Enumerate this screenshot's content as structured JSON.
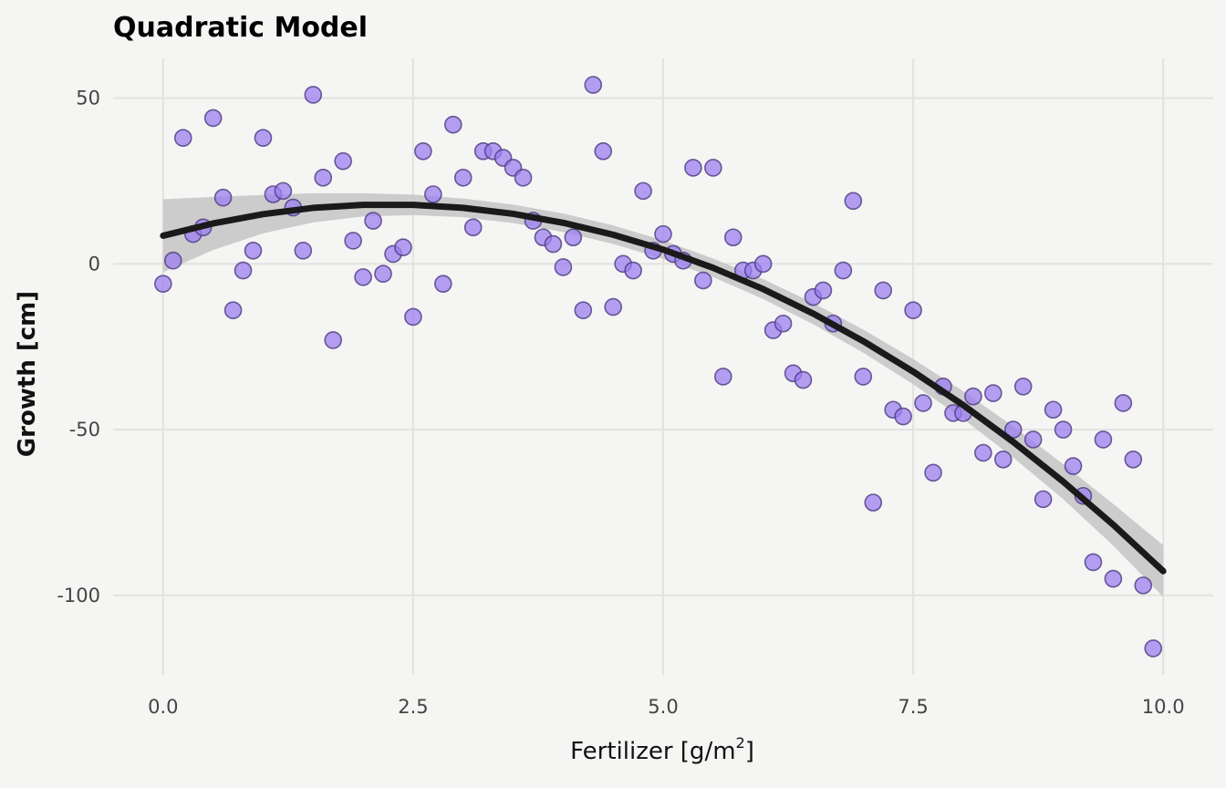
{
  "chart_data": {
    "type": "scatter",
    "title": "Quadratic Model",
    "xlabel": "Fertilizer [g/m",
    "xlabel_sup": "2",
    "xlabel_suffix": "]",
    "ylabel": "Growth [cm]",
    "xlim": [
      -0.5,
      10.5
    ],
    "ylim": [
      -124,
      62
    ],
    "xticks": [
      0.0,
      2.5,
      5.0,
      7.5,
      10.0
    ],
    "xtick_labels": [
      "0.0",
      "2.5",
      "5.0",
      "7.5",
      "10.0"
    ],
    "yticks": [
      50,
      0,
      -50,
      -100
    ],
    "ytick_labels": [
      "50",
      "0",
      "-50",
      "-100"
    ],
    "grid": true,
    "colors": {
      "points_fill": "#9b7ff0",
      "points_stroke": "#4b3a80",
      "fit_line": "#1a1a1a",
      "ribbon": "#c4c4c4",
      "background": "#f5f5f3"
    },
    "points": [
      [
        0.0,
        -6
      ],
      [
        0.1,
        1
      ],
      [
        0.2,
        38
      ],
      [
        0.3,
        9
      ],
      [
        0.4,
        11
      ],
      [
        0.5,
        44
      ],
      [
        0.6,
        20
      ],
      [
        0.7,
        -14
      ],
      [
        0.8,
        -2
      ],
      [
        0.9,
        4
      ],
      [
        1.0,
        38
      ],
      [
        1.1,
        21
      ],
      [
        1.2,
        22
      ],
      [
        1.3,
        17
      ],
      [
        1.4,
        4
      ],
      [
        1.5,
        51
      ],
      [
        1.6,
        26
      ],
      [
        1.7,
        -23
      ],
      [
        1.8,
        31
      ],
      [
        1.9,
        7
      ],
      [
        2.0,
        -4
      ],
      [
        2.1,
        13
      ],
      [
        2.2,
        -3
      ],
      [
        2.3,
        3
      ],
      [
        2.4,
        5
      ],
      [
        2.5,
        -16
      ],
      [
        2.6,
        34
      ],
      [
        2.7,
        21
      ],
      [
        2.8,
        -6
      ],
      [
        2.9,
        42
      ],
      [
        3.0,
        26
      ],
      [
        3.1,
        11
      ],
      [
        3.2,
        34
      ],
      [
        3.3,
        34
      ],
      [
        3.4,
        32
      ],
      [
        3.5,
        29
      ],
      [
        3.6,
        26
      ],
      [
        3.7,
        13
      ],
      [
        3.8,
        8
      ],
      [
        3.9,
        6
      ],
      [
        4.0,
        -1
      ],
      [
        4.1,
        8
      ],
      [
        4.2,
        -14
      ],
      [
        4.3,
        54
      ],
      [
        4.4,
        34
      ],
      [
        4.5,
        -13
      ],
      [
        4.6,
        0
      ],
      [
        4.7,
        -2
      ],
      [
        4.8,
        22
      ],
      [
        4.9,
        4
      ],
      [
        5.0,
        9
      ],
      [
        5.1,
        3
      ],
      [
        5.2,
        1
      ],
      [
        5.3,
        29
      ],
      [
        5.4,
        -5
      ],
      [
        5.5,
        29
      ],
      [
        5.6,
        -34
      ],
      [
        5.7,
        8
      ],
      [
        5.8,
        -2
      ],
      [
        5.9,
        -2
      ],
      [
        6.0,
        0
      ],
      [
        6.1,
        -20
      ],
      [
        6.2,
        -18
      ],
      [
        6.3,
        -33
      ],
      [
        6.4,
        -35
      ],
      [
        6.5,
        -10
      ],
      [
        6.6,
        -8
      ],
      [
        6.7,
        -18
      ],
      [
        6.8,
        -2
      ],
      [
        6.9,
        19
      ],
      [
        7.0,
        -34
      ],
      [
        7.1,
        -72
      ],
      [
        7.2,
        -8
      ],
      [
        7.3,
        -44
      ],
      [
        7.4,
        -46
      ],
      [
        7.5,
        -14
      ],
      [
        7.6,
        -42
      ],
      [
        7.7,
        -63
      ],
      [
        7.8,
        -37
      ],
      [
        7.9,
        -45
      ],
      [
        8.0,
        -45
      ],
      [
        8.1,
        -40
      ],
      [
        8.2,
        -57
      ],
      [
        8.3,
        -39
      ],
      [
        8.4,
        -59
      ],
      [
        8.5,
        -50
      ],
      [
        8.6,
        -37
      ],
      [
        8.7,
        -53
      ],
      [
        8.8,
        -71
      ],
      [
        8.9,
        -44
      ],
      [
        9.0,
        -50
      ],
      [
        9.1,
        -61
      ],
      [
        9.2,
        -70
      ],
      [
        9.3,
        -90
      ],
      [
        9.4,
        -53
      ],
      [
        9.5,
        -95
      ],
      [
        9.6,
        -42
      ],
      [
        9.7,
        -59
      ],
      [
        9.8,
        -97
      ],
      [
        9.9,
        -116
      ]
    ],
    "fit": {
      "x": [
        0.0,
        0.5,
        1.0,
        1.5,
        2.0,
        2.5,
        3.0,
        3.5,
        4.0,
        4.5,
        5.0,
        5.5,
        6.0,
        6.5,
        7.0,
        7.5,
        8.0,
        8.5,
        9.0,
        9.5,
        10.0
      ],
      "y": [
        8.5,
        12.2,
        15.0,
        16.9,
        17.8,
        17.8,
        16.9,
        15.1,
        12.4,
        8.8,
        4.3,
        -1.2,
        -7.6,
        -15.0,
        -23.3,
        -32.5,
        -42.6,
        -53.7,
        -65.7,
        -78.7,
        -92.7
      ],
      "lower": [
        -2.5,
        4.2,
        9.2,
        12.5,
        14.3,
        14.7,
        14.1,
        12.3,
        9.6,
        6.0,
        1.5,
        -4.0,
        -10.6,
        -18.2,
        -26.8,
        -36.3,
        -46.8,
        -58.4,
        -71.0,
        -85.0,
        -100.5
      ],
      "upper": [
        19.5,
        20.2,
        20.8,
        21.3,
        21.3,
        20.9,
        19.7,
        17.9,
        15.2,
        11.6,
        7.1,
        1.6,
        -4.6,
        -11.8,
        -19.8,
        -28.7,
        -38.4,
        -49.0,
        -60.4,
        -72.4,
        -84.9
      ]
    }
  }
}
